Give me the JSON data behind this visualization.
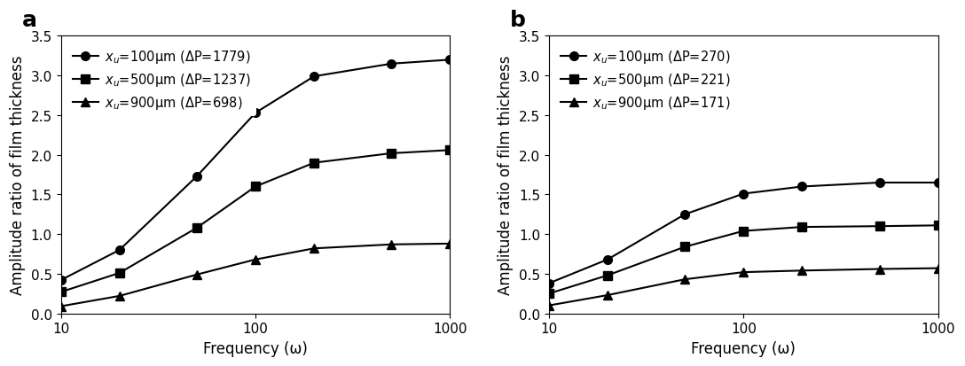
{
  "panel_a": {
    "label": "a",
    "xlabel": "Frequency (ω)",
    "ylabel": "Amplitude ratio of film thickness",
    "xlim": [
      10,
      1000
    ],
    "ylim": [
      0,
      3.5
    ],
    "yticks": [
      0.0,
      0.5,
      1.0,
      1.5,
      2.0,
      2.5,
      3.0,
      3.5
    ],
    "series": [
      {
        "label": "$x_u$=100μm (ΔP=1779)",
        "marker": "o",
        "x": [
          10,
          20,
          50,
          100,
          200,
          500,
          1000
        ],
        "y": [
          0.42,
          0.8,
          1.73,
          2.53,
          2.99,
          3.15,
          3.2
        ]
      },
      {
        "label": "$x_u$=500μm (ΔP=1237)",
        "marker": "s",
        "x": [
          10,
          20,
          50,
          100,
          200,
          500,
          1000
        ],
        "y": [
          0.27,
          0.51,
          1.08,
          1.6,
          1.9,
          2.02,
          2.06
        ]
      },
      {
        "label": "$x_u$=900μm (ΔP=698)",
        "marker": "^",
        "x": [
          10,
          20,
          50,
          100,
          200,
          500,
          1000
        ],
        "y": [
          0.09,
          0.22,
          0.49,
          0.68,
          0.82,
          0.87,
          0.88
        ]
      }
    ]
  },
  "panel_b": {
    "label": "b",
    "xlabel": "Frequency (ω)",
    "ylabel": "Amplitude ratio of film thickness",
    "xlim": [
      10,
      1000
    ],
    "ylim": [
      0,
      3.5
    ],
    "yticks": [
      0.0,
      0.5,
      1.0,
      1.5,
      2.0,
      2.5,
      3.0,
      3.5
    ],
    "series": [
      {
        "label": "$x_u$=100μm (ΔP=270)",
        "marker": "o",
        "x": [
          10,
          20,
          50,
          100,
          200,
          500,
          1000
        ],
        "y": [
          0.38,
          0.68,
          1.25,
          1.51,
          1.6,
          1.65,
          1.65
        ]
      },
      {
        "label": "$x_u$=500μm (ΔP=221)",
        "marker": "s",
        "x": [
          10,
          20,
          50,
          100,
          200,
          500,
          1000
        ],
        "y": [
          0.25,
          0.48,
          0.84,
          1.04,
          1.09,
          1.1,
          1.11
        ]
      },
      {
        "label": "$x_u$=900μm (ΔP=171)",
        "marker": "^",
        "x": [
          10,
          20,
          50,
          100,
          200,
          500,
          1000
        ],
        "y": [
          0.1,
          0.23,
          0.43,
          0.52,
          0.54,
          0.56,
          0.57
        ]
      }
    ]
  },
  "line_color": "#000000",
  "marker_color": "#000000",
  "marker_size": 7,
  "line_width": 1.5,
  "font_size": 11,
  "label_font_size": 12,
  "legend_font_size": 10.5,
  "panel_label_font_size": 18
}
